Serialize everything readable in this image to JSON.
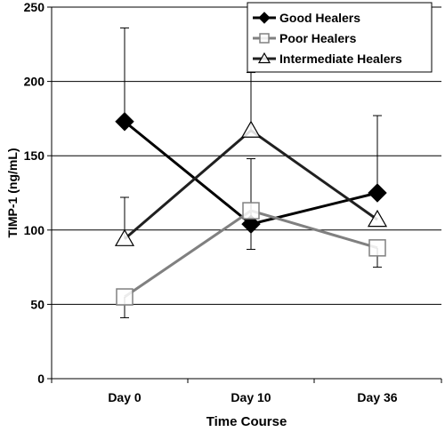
{
  "chart_data": {
    "type": "line",
    "title": "",
    "xlabel": "Time Course",
    "ylabel": "TIMP-1 (ng/mL)",
    "categories": [
      "Day 0",
      "Day 10",
      "Day 36"
    ],
    "ylim": [
      0,
      250
    ],
    "yticks": [
      0,
      50,
      100,
      150,
      200,
      250
    ],
    "grid": "horizontal",
    "legend_position": "top-right",
    "series": [
      {
        "name": "Good Healers",
        "color": "#000000",
        "marker": "diamond-filled",
        "values": [
          173,
          104,
          125
        ],
        "error_upper": [
          236,
          148,
          177
        ],
        "error_lower": [
          null,
          87,
          null
        ]
      },
      {
        "name": "Poor Healers",
        "color": "#808080",
        "marker": "square-open",
        "values": [
          55,
          113,
          88
        ],
        "error_upper": [
          null,
          null,
          null
        ],
        "error_lower": [
          41,
          null,
          75
        ]
      },
      {
        "name": "Intermediate Healers",
        "color": "#202020",
        "marker": "triangle-open",
        "values": [
          94,
          167,
          107
        ],
        "error_upper": [
          122,
          206,
          null
        ],
        "error_lower": [
          null,
          null,
          null
        ]
      }
    ]
  }
}
